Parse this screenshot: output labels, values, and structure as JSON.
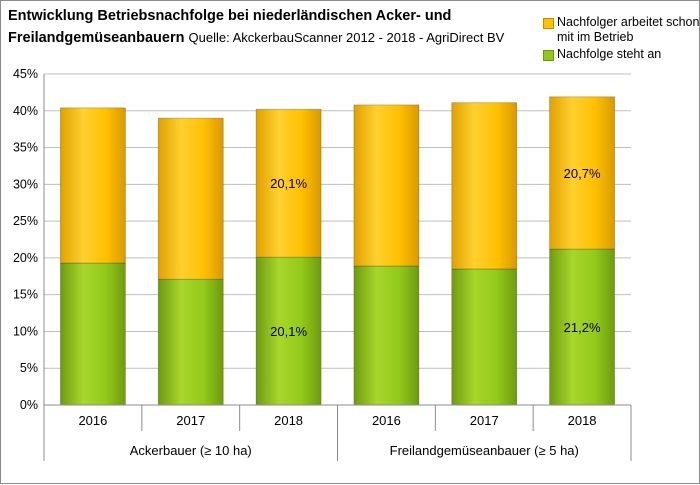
{
  "header": {
    "title_main": "Entwicklung Betriebsnachfolge bei niederländischen Acker- und",
    "title_line2": "Freilandgemüseanbauern",
    "source": "Quelle: AkckerbauScanner 2012 - 2018 - AgriDirect BV"
  },
  "colors": {
    "nachfolger_arbeitet": "#FFC000",
    "nachfolge_steht_an": "#92C91A",
    "grid": "#BFBFBF"
  },
  "chart_data": {
    "type": "bar",
    "stacked": true,
    "categories": [
      "2016",
      "2017",
      "2018",
      "2016",
      "2017",
      "2018"
    ],
    "groups": [
      {
        "label": "Ackerbauer (≥ 10 ha)",
        "span": [
          0,
          2
        ]
      },
      {
        "label": "Freilandgemüseanbauer (≥ 5 ha)",
        "span": [
          3,
          5
        ]
      }
    ],
    "series": [
      {
        "name": "Nachfolge steht an",
        "color": "#92C91A",
        "values": [
          0.193,
          0.171,
          0.201,
          0.189,
          0.185,
          0.212
        ],
        "data_labels": [
          "",
          "",
          "20,1%",
          "",
          "",
          "21,2%"
        ]
      },
      {
        "name": "Nachfolger arbeitet schon mit im Betrieb",
        "color": "#FFC000",
        "values": [
          0.211,
          0.219,
          0.201,
          0.219,
          0.226,
          0.207
        ],
        "data_labels": [
          "",
          "",
          "20,1%",
          "",
          "",
          "20,7%"
        ]
      }
    ],
    "ylim": [
      0,
      0.45
    ],
    "yticks": [
      "0%",
      "5%",
      "10%",
      "15%",
      "20%",
      "25%",
      "30%",
      "35%",
      "40%",
      "45%"
    ],
    "grid": true,
    "legend_position": "top-right"
  }
}
